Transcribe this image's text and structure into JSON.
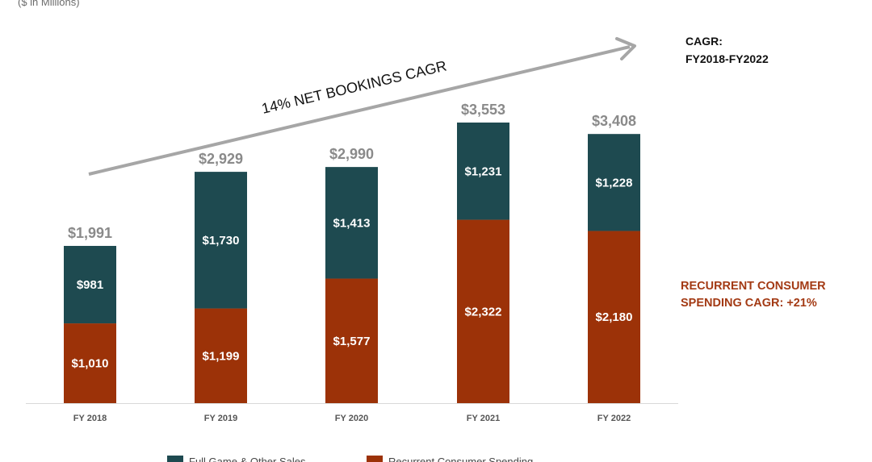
{
  "colors": {
    "full_game": "#1e4a50",
    "recurrent": "#9c3208",
    "total_label": "#8a8a8a",
    "arrow": "#a6a6a6",
    "note": "#a33a14"
  },
  "header": {
    "units": "($ in Millions)"
  },
  "cagr_label": {
    "line1": "CAGR:",
    "line2": "FY2018-FY2022"
  },
  "recurrent_note": {
    "line1": "RECURRENT CONSUMER",
    "line2": "SPENDING CAGR: +21%"
  },
  "chart_data": {
    "type": "bar",
    "stacked": true,
    "title": "",
    "xlabel": "",
    "ylabel": "($ in Millions)",
    "ylim": [
      0,
      4000
    ],
    "categories": [
      "FY 2018",
      "FY 2019",
      "FY 2020",
      "FY 2021",
      "FY 2022"
    ],
    "series": [
      {
        "name": "Recurrent Consumer Spending",
        "values": [
          1010,
          1199,
          1577,
          2322,
          2180
        ],
        "labels": [
          "$1,010",
          "$1,199",
          "$1,577",
          "$2,322",
          "$2,180"
        ]
      },
      {
        "name": "Full Game & Other Sales",
        "values": [
          981,
          1730,
          1413,
          1231,
          1228
        ],
        "labels": [
          "$981",
          "$1,730",
          "$1,413",
          "$1,231",
          "$1,228"
        ]
      }
    ],
    "totals": [
      1991,
      2929,
      2990,
      3553,
      3408
    ],
    "total_labels": [
      "$1,991",
      "$2,929",
      "$2,990",
      "$3,553",
      "$3,408"
    ],
    "annotation": "14% NET BOOKINGS CAGR",
    "legend": [
      "Full Game & Other Sales",
      "Recurrent Consumer Spending"
    ],
    "legend_position": "bottom"
  }
}
